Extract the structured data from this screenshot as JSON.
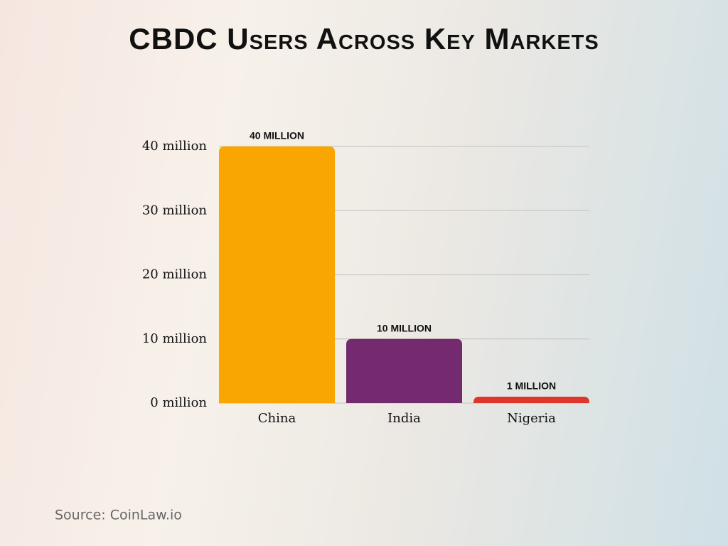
{
  "chart_data": {
    "type": "bar",
    "title": "CBDC Users Across Key Markets",
    "source": "Source: CoinLaw.io",
    "categories": [
      "China",
      "India",
      "Nigeria"
    ],
    "values": [
      40,
      10,
      1
    ],
    "value_labels": [
      "40 MILLION",
      "10 MILLION",
      "1 MILLION"
    ],
    "colors": [
      "#f9a602",
      "#732a6f",
      "#e0352b"
    ],
    "ylim": [
      0,
      40
    ],
    "yticks": [
      {
        "value": 0,
        "label": "0 million"
      },
      {
        "value": 10,
        "label": "10 million"
      },
      {
        "value": 20,
        "label": "20 million"
      },
      {
        "value": 30,
        "label": "30 million"
      },
      {
        "value": 40,
        "label": "40 million"
      }
    ],
    "grid": true
  }
}
